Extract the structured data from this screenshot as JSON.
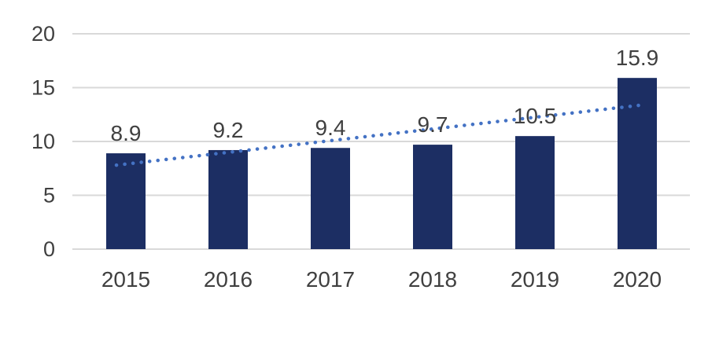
{
  "chart_data": {
    "type": "bar",
    "title": "",
    "xlabel": "",
    "ylabel": "",
    "categories": [
      "2015",
      "2016",
      "2017",
      "2018",
      "2019",
      "2020"
    ],
    "values": [
      8.9,
      9.2,
      9.4,
      9.7,
      10.5,
      15.9
    ],
    "data_labels": [
      "8.9",
      "9.2",
      "9.4",
      "9.7",
      "10.5",
      "15.9"
    ],
    "ylim": [
      0,
      20
    ],
    "yticks": [
      0,
      5,
      10,
      15,
      20
    ],
    "ytick_labels": [
      "0",
      "5",
      "10",
      "15",
      "20"
    ],
    "grid": "horizontal",
    "legend": "none",
    "bar_color": "#1C2E63",
    "axis_text_color": "#404040",
    "gridline_color": "#D9D9D9",
    "trendline": {
      "type": "linear",
      "style": "dotted",
      "color": "#4472C4",
      "start_value": 7.8,
      "end_value": 13.4
    }
  }
}
